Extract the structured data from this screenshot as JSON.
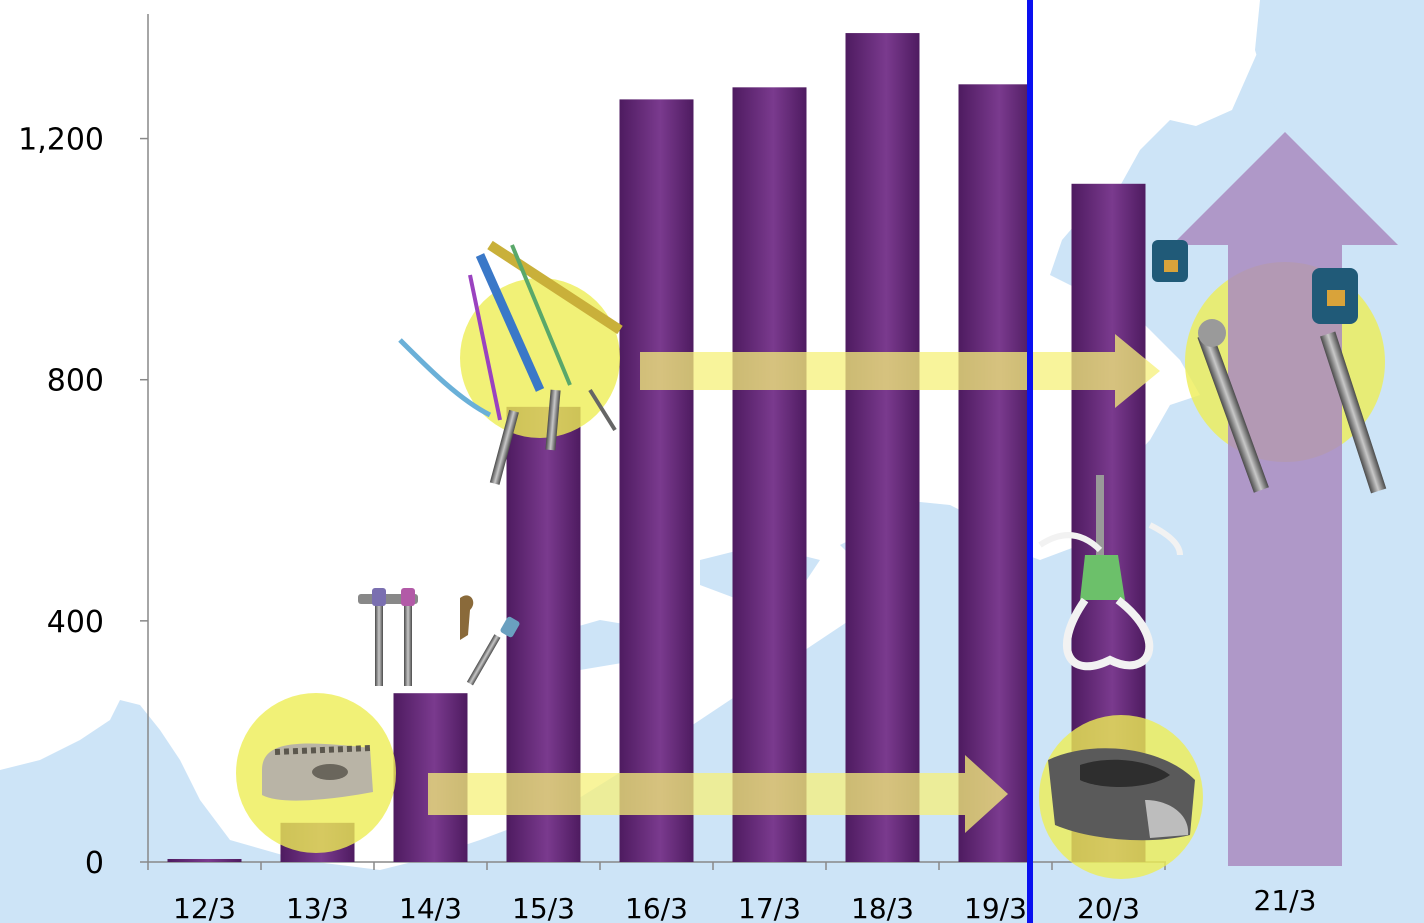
{
  "chart_data": {
    "type": "bar",
    "categories": [
      "12/3",
      "13/3",
      "14/3",
      "15/3",
      "16/3",
      "17/3",
      "18/3",
      "19/3",
      "20/3",
      "21/3"
    ],
    "values": [
      5,
      65,
      280,
      755,
      1265,
      1285,
      1375,
      1290,
      1125,
      null
    ],
    "y_ticks": [
      0,
      400,
      800,
      1200
    ],
    "y_tick_labels": [
      "0",
      "400",
      "800",
      "1,200"
    ],
    "ylim": [
      0,
      1400
    ],
    "grid": false,
    "legend": "none",
    "title": "",
    "xlabel": "",
    "ylabel": "",
    "divider_after_category": "19/3",
    "upward_arrow_category": "21/3",
    "colors": {
      "bar": "#6a2c7e",
      "divider": "#0a10f0",
      "forecast_arrow": "#a98bbf",
      "trend_arrow": "#f6f07a",
      "highlight": "#eeee55",
      "map": "#cde4f7"
    }
  }
}
